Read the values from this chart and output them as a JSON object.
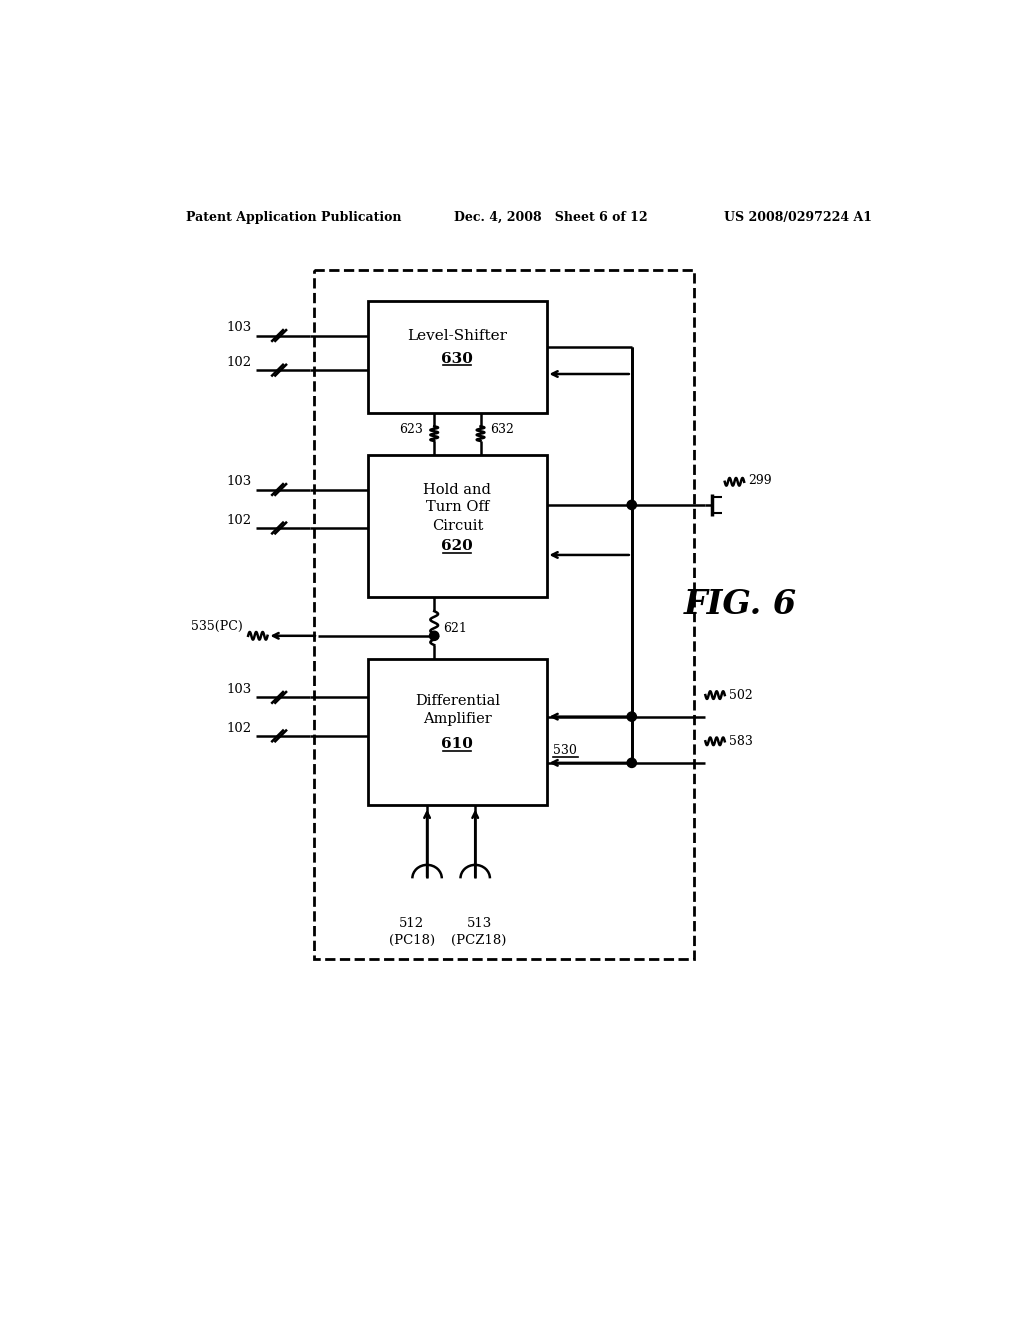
{
  "bg_color": "#ffffff",
  "header_left": "Patent Application Publication",
  "header_mid": "Dec. 4, 2008   Sheet 6 of 12",
  "header_right": "US 2008/0297224 A1",
  "fig_label": "FIG. 6"
}
